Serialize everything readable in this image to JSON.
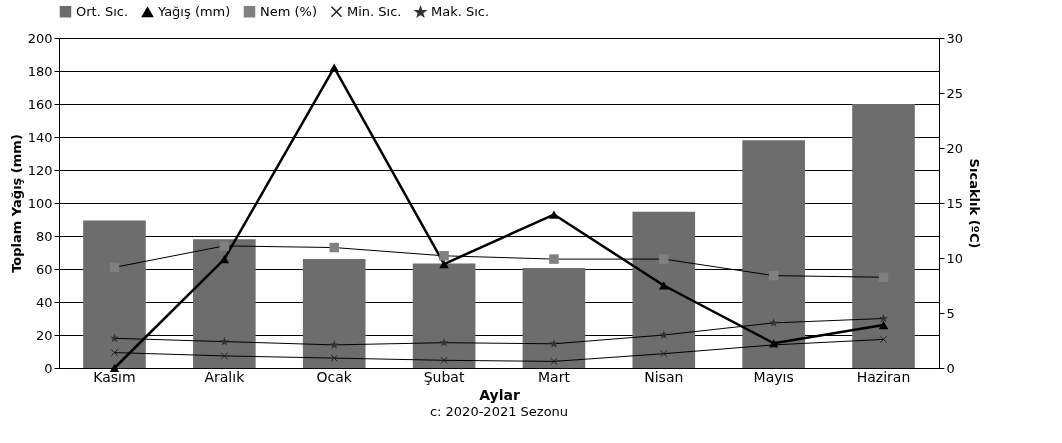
{
  "chart_data": {
    "type": "bar",
    "categories": [
      "Kasım",
      "Aralık",
      "Ocak",
      "Şubat",
      "Mart",
      "Nisan",
      "Mayıs",
      "Haziran"
    ],
    "xlabel": "Aylar",
    "ylabel": "Toplam Yağış (mm)",
    "y2label": "Sıcaklık (ºC)",
    "series": [
      {
        "name": "Ort. Sıc.",
        "axis": "y2",
        "color": "#6d6d6d",
        "values": [
          13.4,
          11.7,
          9.9,
          9.5,
          9.1,
          14.2,
          20.7,
          24.0
        ]
      },
      {
        "name": "Yağış (mm)",
        "type": "line",
        "axis": "y",
        "color": "#000000",
        "marker": "triangle",
        "values": [
          0,
          66,
          182,
          63,
          93,
          50,
          15,
          26
        ]
      },
      {
        "name": "Nem (%)",
        "type": "line",
        "axis": "y",
        "color": "#808080",
        "marker": "square",
        "values": [
          61,
          74,
          73,
          68,
          66,
          66,
          56,
          55
        ]
      },
      {
        "name": "Min. Sıc.",
        "type": "line",
        "axis": "y2",
        "color": "#222222",
        "marker": "cross",
        "values": [
          1.4,
          1.1,
          0.9,
          0.7,
          0.6,
          1.3,
          2.1,
          2.6
        ]
      },
      {
        "name": "Mak. Sıc.",
        "type": "line",
        "axis": "y2",
        "color": "#333333",
        "marker": "star",
        "values": [
          2.7,
          2.4,
          2.1,
          2.3,
          2.2,
          3.0,
          4.1,
          4.5
        ]
      }
    ],
    "ylim": [
      0,
      200
    ],
    "yticks": [
      0,
      20,
      40,
      60,
      80,
      100,
      120,
      140,
      160,
      180,
      200
    ],
    "y2lim": [
      0,
      30
    ],
    "y2ticks": [
      0,
      5,
      10,
      15,
      20,
      25,
      30
    ],
    "grid": "y",
    "legend": "top",
    "annotations": [
      "c: 2020-2021 Sezonu"
    ]
  }
}
